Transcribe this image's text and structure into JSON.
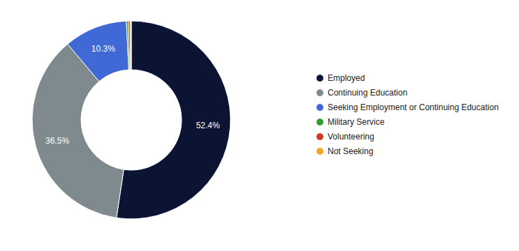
{
  "chart_data": {
    "type": "pie",
    "categories": [
      "Employed",
      "Continuing Education",
      "Seeking Employment or Continuing Education",
      "Military Service",
      "Volunteering",
      "Not Seeking"
    ],
    "values": [
      52.4,
      36.5,
      10.3,
      0.3,
      0.3,
      0.2
    ],
    "value_labels": [
      "52.4%",
      "36.5%",
      "10.3%",
      null,
      null,
      null
    ],
    "colors": [
      "#0b1433",
      "#7f8a8e",
      "#4169d6",
      "#2e9e2e",
      "#d03a1e",
      "#f5a623"
    ],
    "data_labels": true,
    "legend": "right"
  }
}
